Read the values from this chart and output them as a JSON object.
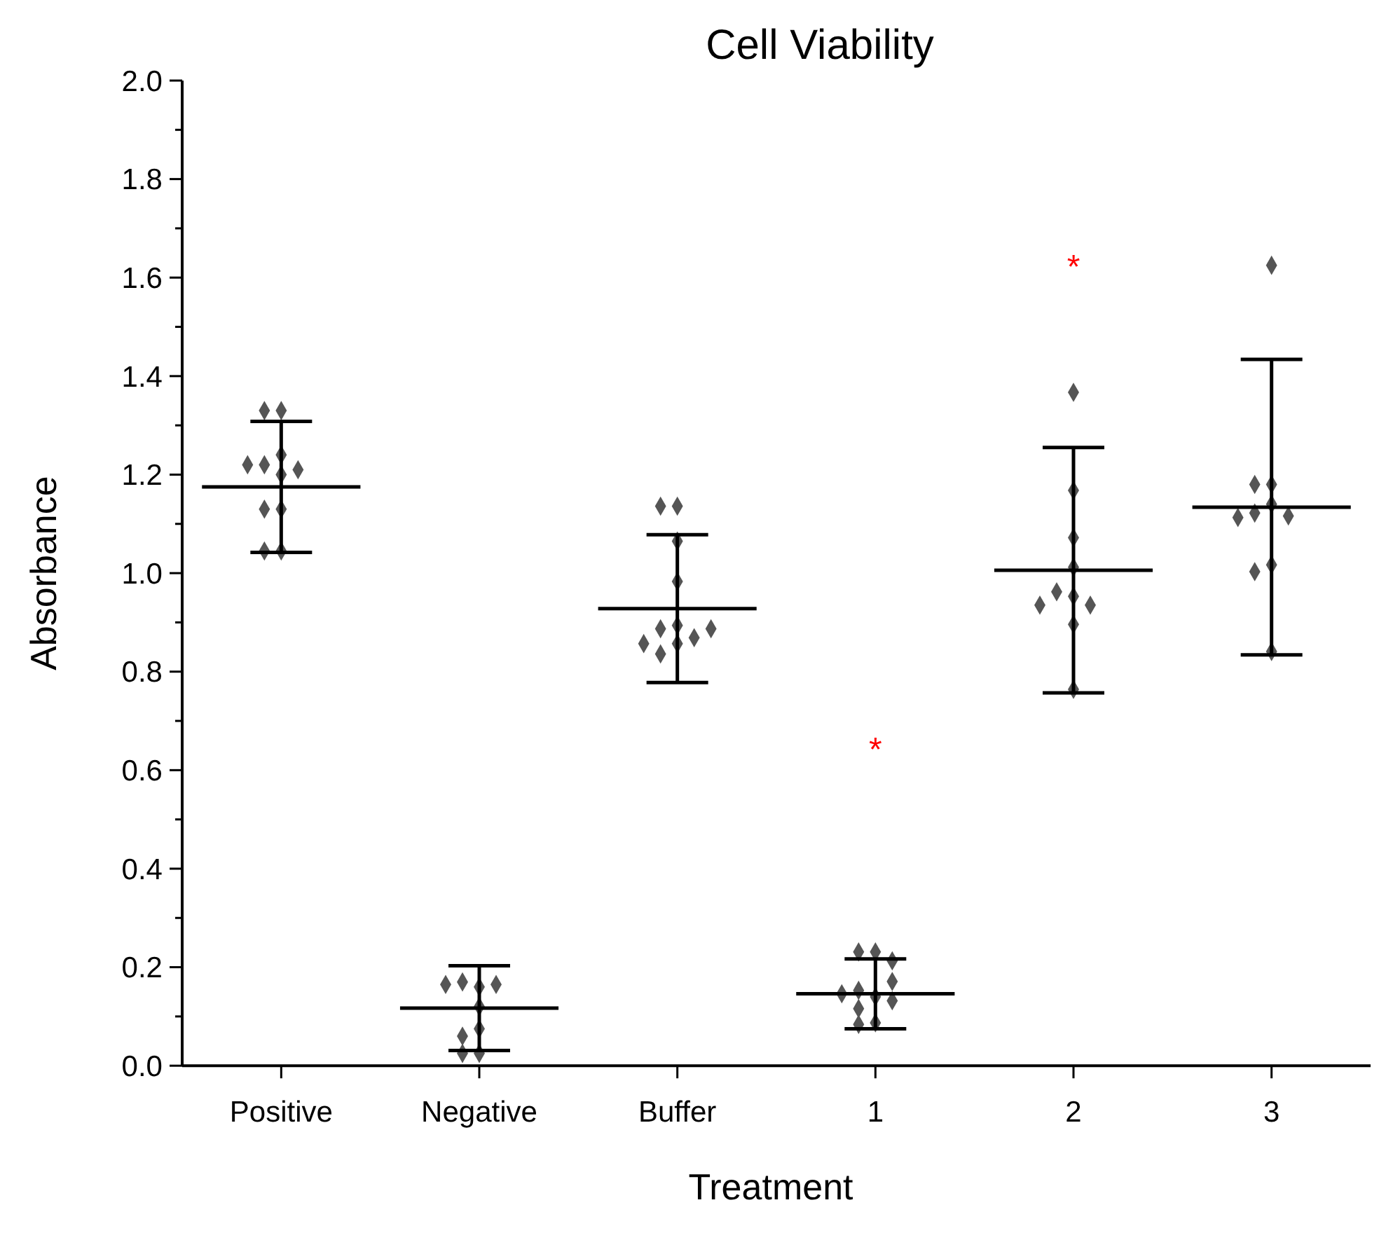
{
  "chart_data": {
    "type": "scatter",
    "title": "Cell Viability",
    "xlabel": "Treatment",
    "ylabel": "Absorbance",
    "categories": [
      "Positive",
      "Negative",
      "Buffer",
      "1",
      "2",
      "3"
    ],
    "ylim": [
      0,
      2.0
    ],
    "yticks": [
      {
        "value": 0,
        "label": "0.0"
      },
      {
        "value": 0.1,
        "label": null
      },
      {
        "value": 0.2,
        "label": "0.2"
      },
      {
        "value": 0.3,
        "label": null
      },
      {
        "value": 0.4,
        "label": "0.4"
      },
      {
        "value": 0.5,
        "label": null
      },
      {
        "value": 0.6,
        "label": "0.6"
      },
      {
        "value": 0.7,
        "label": null
      },
      {
        "value": 0.8,
        "label": "0.8"
      },
      {
        "value": 0.9,
        "label": null
      },
      {
        "value": 1.0,
        "label": "1.0"
      },
      {
        "value": 1.1,
        "label": null
      },
      {
        "value": 1.2,
        "label": "1.2"
      },
      {
        "value": 1.3,
        "label": null
      },
      {
        "value": 1.4,
        "label": "1.4"
      },
      {
        "value": 1.5,
        "label": null
      },
      {
        "value": 1.6,
        "label": "1.6"
      },
      {
        "value": 1.7,
        "label": null
      },
      {
        "value": 1.8,
        "label": "1.8"
      },
      {
        "value": 1.9,
        "label": null
      },
      {
        "value": 2.0,
        "label": "2.0"
      }
    ],
    "grid": false,
    "series": [
      {
        "marker": "diamond",
        "color": "#555555",
        "x": [
          "Positive",
          "Positive",
          "Positive",
          "Positive",
          "Positive",
          "Positive",
          "Positive",
          "Positive",
          "Positive",
          "Positive",
          "Positive",
          "Negative",
          "Negative",
          "Negative",
          "Negative",
          "Negative",
          "Negative",
          "Negative",
          "Negative",
          "Negative",
          "Buffer",
          "Buffer",
          "Buffer",
          "Buffer",
          "Buffer",
          "Buffer",
          "Buffer",
          "Buffer",
          "Buffer",
          "Buffer",
          "Buffer",
          "1",
          "1",
          "1",
          "1",
          "1",
          "1",
          "1",
          "1",
          "1",
          "1",
          "1",
          "2",
          "2",
          "2",
          "2",
          "2",
          "2",
          "2",
          "2",
          "2",
          "2",
          "3",
          "3",
          "3",
          "3",
          "3",
          "3",
          "3",
          "3",
          "3",
          "3"
        ],
        "values": [
          1.33,
          1.33,
          1.24,
          1.22,
          1.21,
          1.2,
          1.22,
          1.13,
          1.13,
          1.045,
          1.045,
          0.075,
          0.12,
          0.16,
          0.17,
          0.165,
          0.165,
          0.025,
          0.025,
          0.06,
          0.857,
          0.836,
          0.894,
          0.887,
          1.065,
          1.136,
          1.136,
          0.983,
          0.869,
          0.857,
          0.887,
          0.14,
          0.153,
          0.171,
          0.231,
          0.231,
          0.213,
          0.087,
          0.084,
          0.132,
          0.146,
          0.116,
          0.953,
          0.962,
          1.012,
          1.367,
          1.168,
          1.072,
          0.935,
          0.896,
          0.935,
          0.764,
          1.14,
          1.18,
          1.122,
          1.625,
          1.18,
          1.017,
          1.116,
          1.003,
          1.113,
          0.841
        ]
      },
      {
        "type": "box",
        "color": "#000000",
        "boxes": [
          {
            "low": 1.042,
            "q1": 1.175,
            "median": 1.175,
            "q3": 1.175,
            "high": 1.308
          },
          {
            "low": 0.031,
            "q1": 0.117,
            "median": 0.117,
            "q3": 0.117,
            "high": 0.203
          },
          {
            "low": 0.778,
            "q1": 0.928,
            "median": 0.928,
            "q3": 0.928,
            "high": 1.078
          },
          {
            "low": 0.075,
            "q1": 0.146,
            "median": 0.146,
            "q3": 0.146,
            "high": 0.217
          },
          {
            "low": 0.757,
            "q1": 1.006,
            "median": 1.006,
            "q3": 1.006,
            "high": 1.255
          },
          {
            "low": 0.834,
            "q1": 1.134,
            "median": 1.134,
            "q3": 1.134,
            "high": 1.434
          }
        ]
      }
    ],
    "annotations": [
      "*",
      "*"
    ]
  }
}
